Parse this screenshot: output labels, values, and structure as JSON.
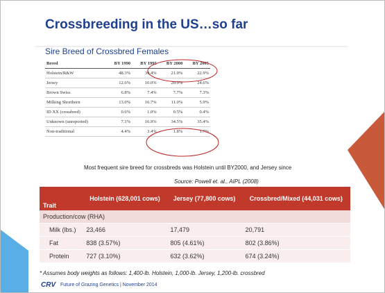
{
  "slide": {
    "title": "Crossbreeding in the US…so far",
    "subtitle": "Sire Breed of Crossbred Females",
    "breed_table": {
      "header": [
        "Breed",
        "BY 1990",
        "BY 1995",
        "BY 2000",
        "BY 2005"
      ],
      "rows": [
        [
          "Holstein/R&W",
          "48.3%",
          "39.4%",
          "21.0%",
          "22.9%"
        ],
        [
          "Jersey",
          "12.6%",
          "10.0%",
          "20.9%",
          "24.6%"
        ],
        [
          "Brown Swiss",
          "6.8%",
          "7.4%",
          "7.7%",
          "7.3%"
        ],
        [
          "Milking Shorthorn",
          "13.0%",
          "16.7%",
          "11.0%",
          "5.9%"
        ],
        [
          "ID XX (crossbred)",
          "0.6%",
          "1.0%",
          "0.5%",
          "0.4%"
        ],
        [
          "Unknown (unreported)",
          "7.1%",
          "16.9%",
          "34.5%",
          "35.4%"
        ],
        [
          "Non-traditional",
          "4.4%",
          "3.4%",
          "1.8%",
          "1.7%"
        ]
      ]
    },
    "note": "Most frequent sire breed for crossbreds was Holstein until BY2000, and Jersey since",
    "source": "Source: Powell et. al., AIPL (2008)",
    "trait_table": {
      "header": [
        "Trait",
        "Holstein (628,001 cows)",
        "Jersey (77,800 cows)",
        "Crossbred/Mixed (44,031 cows)"
      ],
      "section": "Production/cow (RHA)",
      "rows": [
        [
          "Milk (lbs.)",
          "23,466",
          "17,479",
          "20,791"
        ],
        [
          "Fat",
          "838 (3.57%)",
          "805 (4.61%)",
          "802 (3.86%)"
        ],
        [
          "Protein",
          "727 (3.10%)",
          "632 (3.62%)",
          "674 (3.24%)"
        ]
      ]
    },
    "footnote": "* Assumes body weights as follows: 1,400-lb. Holstein, 1,000-lb. Jersey, 1,200-lb. crossbred",
    "logo": "CRV",
    "footer": "Future of Grazing Genetics | November 2014"
  }
}
